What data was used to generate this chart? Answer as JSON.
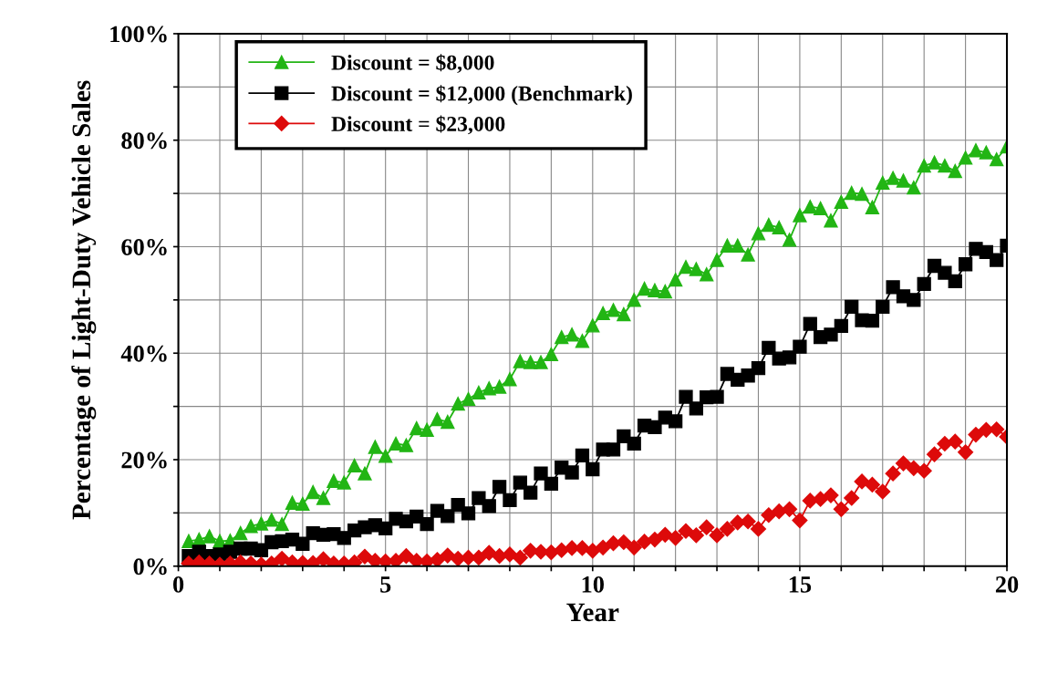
{
  "chart_data": {
    "type": "line",
    "xlabel": "Year",
    "ylabel": "Percentage of Light-Duty Vehicle Sales",
    "x": [
      0.25,
      0.5,
      0.75,
      1,
      1.25,
      1.5,
      1.75,
      2,
      2.25,
      2.5,
      2.75,
      3,
      3.25,
      3.5,
      3.75,
      4,
      4.25,
      4.5,
      4.75,
      5,
      5.25,
      5.5,
      5.75,
      6,
      6.25,
      6.5,
      6.75,
      7,
      7.25,
      7.5,
      7.75,
      8,
      8.25,
      8.5,
      8.75,
      9,
      9.25,
      9.5,
      9.75,
      10,
      10.25,
      10.5,
      10.75,
      11,
      11.25,
      11.5,
      11.75,
      12,
      12.25,
      12.5,
      12.75,
      13,
      13.25,
      13.5,
      13.75,
      14,
      14.25,
      14.5,
      14.75,
      15,
      15.25,
      15.5,
      15.75,
      16,
      16.25,
      16.5,
      16.75,
      17,
      17.25,
      17.5,
      17.75,
      18,
      18.25,
      18.5,
      18.75,
      19,
      19.25,
      19.5,
      19.75,
      20
    ],
    "series": [
      {
        "name": "Discount = $8,000",
        "color": "#22b514",
        "marker": "triangle",
        "values": [
          4.7,
          5.0,
          5.6,
          4.7,
          4.8,
          6.2,
          7.5,
          8.0,
          8.7,
          7.9,
          11.9,
          11.7,
          13.9,
          12.8,
          16.0,
          15.7,
          18.9,
          17.4,
          22.4,
          20.7,
          23.0,
          22.7,
          25.9,
          25.6,
          27.6,
          27.1,
          30.5,
          31.4,
          32.6,
          33.4,
          33.7,
          35.1,
          38.5,
          38.3,
          38.3,
          39.8,
          43.0,
          43.5,
          42.3,
          45.2,
          47.5,
          48.1,
          47.3,
          50.0,
          52.1,
          51.8,
          51.6,
          53.8,
          56.2,
          55.8,
          54.8,
          57.5,
          60.2,
          60.2,
          58.5,
          62.5,
          64.1,
          63.6,
          61.3,
          65.9,
          67.5,
          67.2,
          64.9,
          68.4,
          70.1,
          69.9,
          67.4,
          72.0,
          72.9,
          72.4,
          71.1,
          75.2,
          75.8,
          75.2,
          74.2,
          76.7,
          78.1,
          77.7,
          76.4,
          78.8
        ]
      },
      {
        "name": "Discount = $12,000 (Benchmark)",
        "color": "#000000",
        "marker": "square",
        "values": [
          1.9,
          2.7,
          1.9,
          2.2,
          2.7,
          3.3,
          3.3,
          3.0,
          4.5,
          4.7,
          5.0,
          4.2,
          6.2,
          5.9,
          6.0,
          5.3,
          6.7,
          7.3,
          7.7,
          7.1,
          8.9,
          8.4,
          9.3,
          7.9,
          10.4,
          9.4,
          11.5,
          9.9,
          12.8,
          11.3,
          14.9,
          12.4,
          15.7,
          13.8,
          17.4,
          15.5,
          18.5,
          17.6,
          20.8,
          18.2,
          21.9,
          21.9,
          24.4,
          23.0,
          26.4,
          26.1,
          27.9,
          27.2,
          31.8,
          29.6,
          31.7,
          31.8,
          36.1,
          35.0,
          35.8,
          37.2,
          41.0,
          39.0,
          39.2,
          41.2,
          45.5,
          43.0,
          43.5,
          45.1,
          48.7,
          46.2,
          46.1,
          48.7,
          52.4,
          50.7,
          50.0,
          53.0,
          56.4,
          55.1,
          53.5,
          56.7,
          59.6,
          59.0,
          57.5,
          60.2
        ]
      },
      {
        "name": "Discount = $23,000",
        "color": "#dd0a0a",
        "marker": "diamond",
        "values": [
          0.5,
          0.7,
          0.5,
          0.3,
          0.5,
          0.7,
          0.5,
          0.3,
          0.5,
          1.4,
          0.7,
          0.6,
          0.6,
          1.3,
          0.5,
          0.5,
          0.7,
          1.8,
          1.0,
          0.9,
          1.0,
          1.9,
          1.0,
          0.9,
          1.2,
          2.0,
          1.4,
          1.6,
          1.6,
          2.5,
          1.9,
          2.2,
          1.6,
          2.9,
          2.7,
          2.6,
          3.0,
          3.4,
          3.4,
          2.9,
          3.5,
          4.3,
          4.5,
          3.5,
          4.6,
          5.0,
          5.9,
          5.3,
          6.6,
          5.8,
          7.3,
          5.8,
          7.0,
          8.2,
          8.4,
          7.0,
          9.6,
          10.3,
          10.7,
          8.6,
          12.3,
          12.6,
          13.3,
          10.7,
          12.8,
          15.9,
          15.3,
          14.0,
          17.4,
          19.3,
          18.4,
          17.9,
          21.0,
          23.0,
          23.4,
          21.4,
          24.7,
          25.6,
          25.7,
          24.3
        ]
      }
    ],
    "xlim": [
      0,
      20
    ],
    "xticks": [
      0,
      {
        "value": 1,
        "label": null
      },
      {
        "value": 2,
        "label": null
      },
      {
        "value": 3,
        "label": null
      },
      {
        "value": 4,
        "label": null
      },
      5,
      {
        "value": 6,
        "label": null
      },
      {
        "value": 7,
        "label": null
      },
      {
        "value": 8,
        "label": null
      },
      {
        "value": 9,
        "label": null
      },
      10,
      {
        "value": 11,
        "label": null
      },
      {
        "value": 12,
        "label": null
      },
      {
        "value": 13,
        "label": null
      },
      {
        "value": 14,
        "label": null
      },
      15,
      {
        "value": 16,
        "label": null
      },
      {
        "value": 17,
        "label": null
      },
      {
        "value": 18,
        "label": null
      },
      {
        "value": 19,
        "label": null
      },
      20
    ],
    "ylim": [
      0,
      100
    ],
    "yticks": [
      {
        "value": 0,
        "label": "0%"
      },
      {
        "value": 10,
        "label": null
      },
      {
        "value": 20,
        "label": "20%"
      },
      {
        "value": 30,
        "label": null
      },
      {
        "value": 40,
        "label": "40%"
      },
      {
        "value": 50,
        "label": null
      },
      {
        "value": 60,
        "label": "60%"
      },
      {
        "value": 70,
        "label": null
      },
      {
        "value": 80,
        "label": "80%"
      },
      {
        "value": 90,
        "label": null
      },
      {
        "value": 100,
        "label": "100%"
      }
    ],
    "grid": true,
    "legend": "top left",
    "line_style": "solid"
  }
}
